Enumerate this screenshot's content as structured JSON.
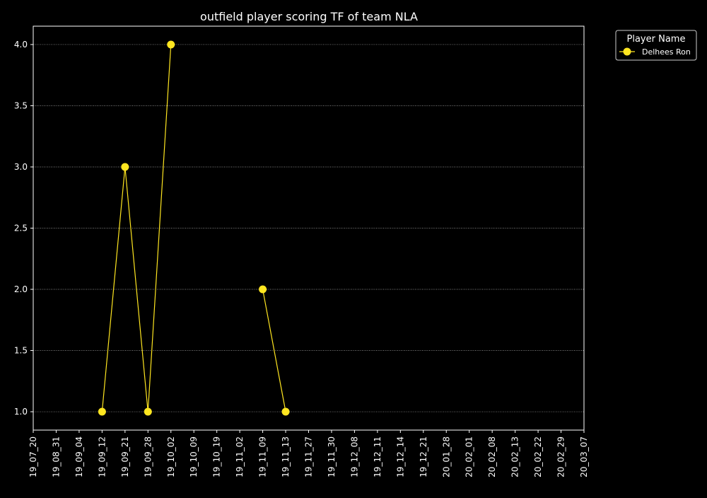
{
  "chart_data": {
    "type": "line",
    "title": "outfield player scoring TF of team NLA",
    "xlabel": "",
    "ylabel": "",
    "categories": [
      "19_07_20",
      "19_08_31",
      "19_09_04",
      "19_09_12",
      "19_09_21",
      "19_09_28",
      "19_10_02",
      "19_10_09",
      "19_10_19",
      "19_11_02",
      "19_11_09",
      "19_11_13",
      "19_11_27",
      "19_11_30",
      "19_12_08",
      "19_12_11",
      "19_12_14",
      "19_12_21",
      "20_01_28",
      "20_02_01",
      "20_02_08",
      "20_02_13",
      "20_02_22",
      "20_02_29",
      "20_03_07"
    ],
    "y_ticks": [
      "1.0",
      "1.5",
      "2.0",
      "2.5",
      "3.0",
      "3.5",
      "4.0"
    ],
    "ylim": [
      0.85,
      4.15
    ],
    "grid": "horizontal dotted",
    "legend": {
      "title": "Player Name",
      "position": "top-right outside"
    },
    "series": [
      {
        "name": "Delhees Ron",
        "color": "#ffe620",
        "values": [
          null,
          null,
          null,
          1,
          3,
          1,
          4,
          null,
          null,
          null,
          2,
          1,
          null,
          null,
          null,
          null,
          null,
          null,
          null,
          null,
          null,
          null,
          null,
          null,
          null
        ]
      }
    ]
  }
}
